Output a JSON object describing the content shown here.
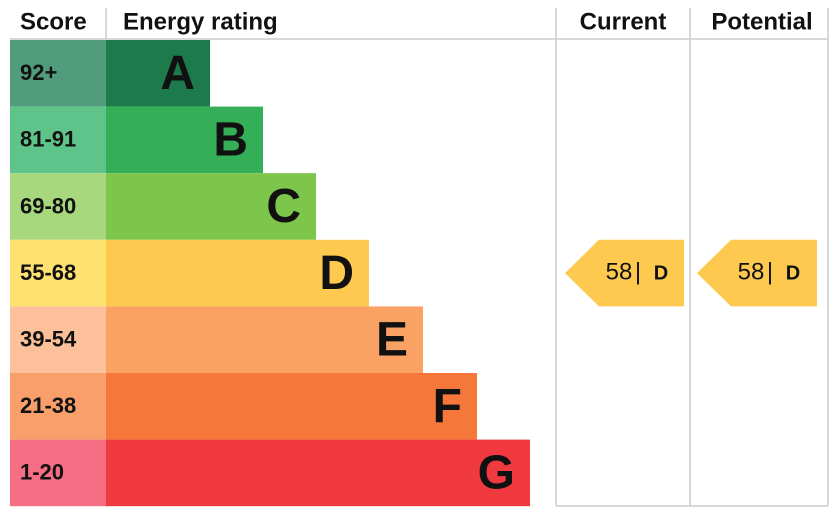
{
  "headers": {
    "score": "Score",
    "rating": "Energy rating",
    "current": "Current",
    "potential": "Potential"
  },
  "rows": [
    {
      "range": "92+",
      "band": "A"
    },
    {
      "range": "81-91",
      "band": "B"
    },
    {
      "range": "69-80",
      "band": "C"
    },
    {
      "range": "55-68",
      "band": "D"
    },
    {
      "range": "39-54",
      "band": "E"
    },
    {
      "range": "21-38",
      "band": "F"
    },
    {
      "range": "1-20",
      "band": "G"
    }
  ],
  "current": {
    "score": "58",
    "separator": "|",
    "band": "D"
  },
  "potential": {
    "score": "58",
    "separator": "|",
    "band": "D"
  }
}
